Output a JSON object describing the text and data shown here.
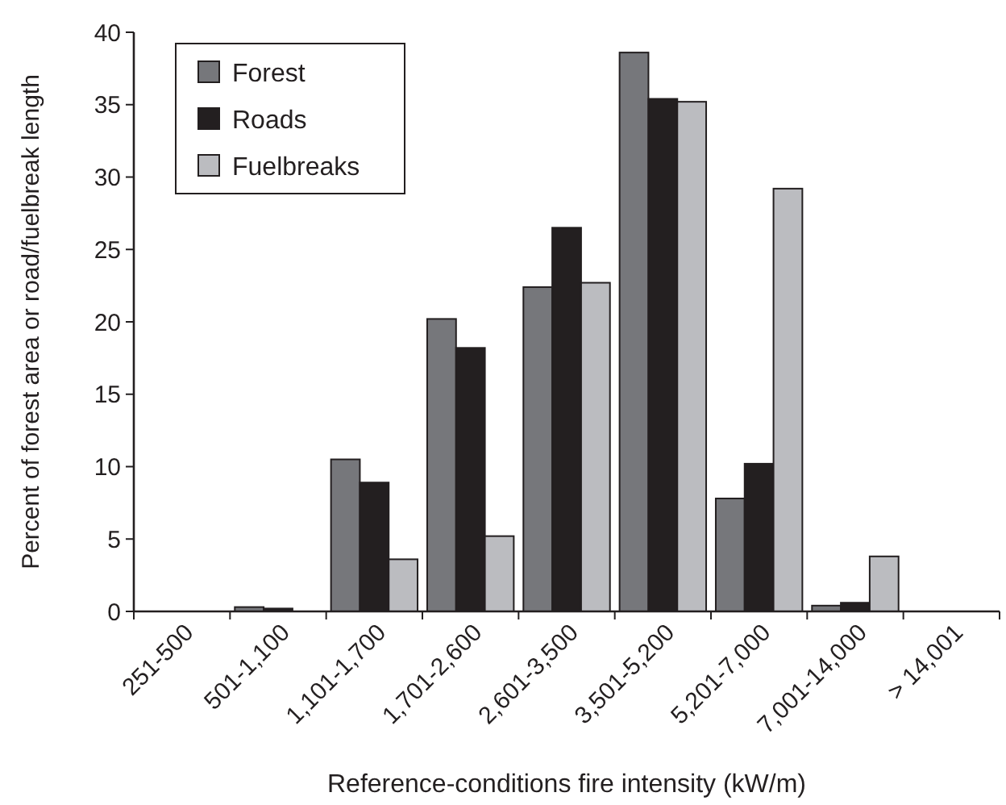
{
  "chart_data": {
    "type": "bar",
    "xlabel": "Reference-conditions fire intensity (kW/m)",
    "ylabel": "Percent of forest area or road/fuelbreak length",
    "categories": [
      "251-500",
      "501-1,100",
      "1,101-1,700",
      "1,701-2,600",
      "2,601-3,500",
      "3,501-5,200",
      "5,201-7,000",
      "7,001-14,000",
      "> 14,001"
    ],
    "series": [
      {
        "name": "Forest",
        "color": "#76777b",
        "values": [
          0,
          0.3,
          10.5,
          20.2,
          22.4,
          38.6,
          7.8,
          0.4,
          0
        ]
      },
      {
        "name": "Roads",
        "color": "#231f20",
        "values": [
          0,
          0.2,
          8.9,
          18.2,
          26.5,
          35.4,
          10.2,
          0.6,
          0
        ]
      },
      {
        "name": "Fuelbreaks",
        "color": "#bbbcc0",
        "values": [
          0,
          0,
          3.6,
          5.2,
          22.7,
          35.2,
          29.2,
          3.8,
          0
        ]
      }
    ],
    "ylim": [
      0,
      40
    ],
    "yticks": [
      0,
      5,
      10,
      15,
      20,
      25,
      30,
      35,
      40
    ],
    "legend": "top left",
    "grid": false
  }
}
